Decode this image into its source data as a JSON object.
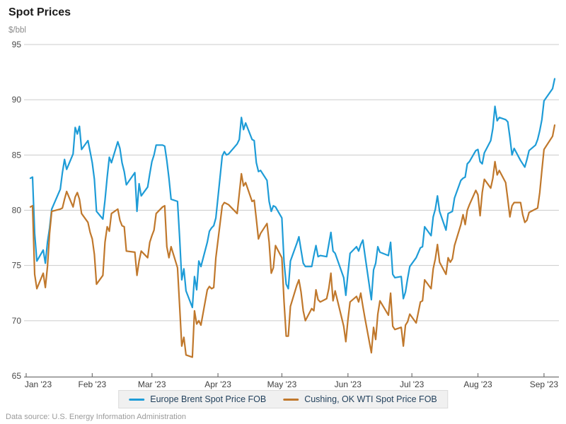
{
  "header": {
    "title": "Spot Prices",
    "unit_label": "$/bbl"
  },
  "source": {
    "text": "Data source: U.S. Energy Information Administration"
  },
  "legend": [
    {
      "label": "Europe Brent Spot Price FOB",
      "color": "#1e9cd7"
    },
    {
      "label": "Cushing, OK WTI Spot Price FOB",
      "color": "#c0782c"
    }
  ],
  "colors": {
    "brent_line": "#1e9cd7",
    "wti_line": "#c0782c",
    "gridline": "#cccccc",
    "axis_line": "#737373",
    "axis_label": "#4a4a4a",
    "month_label": "#404040",
    "legend_text": "#1f3e5a"
  },
  "chart_data": {
    "type": "line",
    "title": "Spot Prices",
    "ylabel": "$/bbl",
    "xlabel": "",
    "grid": "horizontal",
    "legend_position": "bottom",
    "ylim": [
      65,
      95
    ],
    "y_ticks": [
      65,
      70,
      75,
      80,
      85,
      90,
      95
    ],
    "xlim": [
      1,
      251
    ],
    "x_unit": "day_of_year_2023",
    "x_ticks": [
      {
        "label": "Jan '23",
        "doy": 1
      },
      {
        "label": "Feb '23",
        "doy": 32
      },
      {
        "label": "Mar '23",
        "doy": 60
      },
      {
        "label": "Apr '23",
        "doy": 91
      },
      {
        "label": "May '23",
        "doy": 121
      },
      {
        "label": "Jun '23",
        "doy": 152
      },
      {
        "label": "Jul '23",
        "doy": 182
      },
      {
        "label": "Aug '23",
        "doy": 213
      },
      {
        "label": "Sep '23",
        "doy": 244
      }
    ],
    "x": [
      3,
      4,
      5,
      6,
      9,
      10,
      11,
      12,
      13,
      17,
      18,
      19,
      20,
      23,
      24,
      25,
      26,
      27,
      30,
      31,
      32,
      33,
      34,
      37,
      38,
      39,
      40,
      41,
      44,
      45,
      46,
      47,
      48,
      52,
      53,
      54,
      55,
      58,
      59,
      60,
      61,
      62,
      65,
      66,
      67,
      68,
      69,
      72,
      73,
      74,
      75,
      76,
      79,
      80,
      81,
      82,
      83,
      86,
      87,
      88,
      89,
      90,
      93,
      94,
      95,
      96,
      100,
      101,
      102,
      103,
      104,
      107,
      108,
      109,
      110,
      111,
      114,
      115,
      116,
      117,
      118,
      121,
      122,
      123,
      124,
      125,
      128,
      129,
      130,
      131,
      132,
      135,
      136,
      137,
      138,
      139,
      142,
      143,
      144,
      145,
      146,
      150,
      151,
      152,
      153,
      156,
      157,
      158,
      159,
      160,
      163,
      164,
      165,
      166,
      167,
      171,
      172,
      173,
      174,
      177,
      178,
      179,
      180,
      181,
      184,
      186,
      187,
      188,
      191,
      192,
      193,
      194,
      195,
      198,
      199,
      200,
      201,
      202,
      205,
      206,
      207,
      208,
      209,
      212,
      213,
      214,
      215,
      216,
      219,
      220,
      221,
      222,
      223,
      226,
      227,
      228,
      229,
      230,
      233,
      234,
      235,
      236,
      237,
      240,
      241,
      242,
      243,
      244,
      248,
      249
    ],
    "series": [
      {
        "name": "Europe Brent Spot Price FOB",
        "color": "#1e9cd7",
        "values": [
          82.9,
          83.0,
          77.9,
          75.4,
          76.4,
          75.2,
          77.1,
          78.4,
          80.1,
          81.9,
          83.4,
          84.6,
          83.7,
          85.1,
          87.5,
          86.9,
          87.6,
          85.5,
          86.3,
          85.3,
          84.3,
          82.8,
          79.9,
          79.2,
          80.9,
          83.0,
          84.8,
          84.3,
          86.2,
          85.6,
          84.3,
          83.5,
          82.3,
          83.4,
          79.9,
          82.4,
          81.3,
          82.1,
          83.3,
          84.4,
          85.0,
          85.9,
          85.9,
          85.8,
          84.5,
          82.9,
          81.0,
          80.8,
          77.5,
          73.7,
          74.7,
          72.7,
          71.2,
          74.0,
          72.8,
          75.4,
          74.9,
          77.1,
          78.1,
          78.4,
          78.6,
          79.3,
          84.9,
          85.3,
          85.0,
          85.1,
          86.0,
          86.4,
          88.4,
          87.3,
          87.9,
          86.4,
          86.3,
          84.3,
          83.5,
          83.6,
          82.7,
          80.8,
          79.9,
          80.4,
          80.3,
          79.3,
          75.3,
          73.3,
          72.9,
          75.4,
          77.0,
          77.6,
          76.4,
          75.2,
          74.9,
          74.9,
          75.9,
          76.8,
          75.8,
          75.9,
          75.8,
          76.9,
          78.0,
          76.3,
          76.1,
          73.9,
          72.3,
          74.3,
          76.1,
          76.7,
          76.3,
          76.9,
          77.3,
          75.9,
          71.9,
          74.6,
          75.2,
          76.7,
          76.2,
          75.9,
          77.1,
          74.2,
          73.9,
          74.0,
          72.0,
          72.6,
          73.8,
          74.9,
          75.7,
          76.6,
          76.7,
          78.5,
          77.7,
          79.4,
          80.1,
          81.3,
          79.9,
          78.2,
          79.7,
          79.8,
          79.9,
          81.1,
          82.7,
          82.9,
          83.0,
          84.2,
          84.4,
          85.4,
          85.5,
          84.4,
          84.2,
          85.2,
          86.3,
          87.4,
          89.4,
          88.1,
          88.4,
          88.2,
          88.0,
          86.6,
          85.0,
          85.6,
          84.5,
          84.2,
          83.9,
          84.6,
          85.4,
          85.9,
          86.4,
          87.2,
          88.2,
          89.9,
          91.0,
          91.9
        ]
      },
      {
        "name": "Cushing, OK WTI Spot Price FOB",
        "color": "#c0782c",
        "values": [
          80.3,
          80.4,
          74.2,
          72.9,
          74.3,
          73.0,
          74.9,
          77.9,
          79.9,
          80.1,
          80.2,
          81.0,
          81.7,
          80.3,
          81.2,
          81.6,
          81.0,
          79.7,
          78.9,
          78.0,
          77.4,
          76.0,
          73.3,
          74.1,
          77.1,
          78.5,
          78.1,
          79.7,
          80.1,
          79.1,
          78.6,
          78.5,
          76.3,
          76.2,
          74.1,
          75.4,
          76.3,
          75.7,
          77.1,
          77.7,
          78.2,
          79.7,
          80.3,
          80.4,
          76.7,
          75.7,
          76.7,
          74.8,
          71.3,
          67.7,
          68.5,
          66.9,
          66.7,
          70.9,
          69.7,
          70.0,
          69.6,
          72.8,
          73.1,
          72.9,
          73.0,
          75.7,
          80.4,
          80.7,
          80.6,
          80.5,
          79.7,
          81.5,
          83.3,
          82.2,
          82.5,
          80.8,
          80.9,
          79.2,
          77.4,
          77.9,
          78.8,
          77.1,
          74.3,
          74.8,
          76.8,
          75.7,
          71.7,
          68.6,
          68.6,
          71.3,
          73.2,
          73.7,
          72.6,
          70.9,
          70.0,
          71.1,
          70.9,
          72.8,
          71.9,
          71.7,
          72.0,
          72.9,
          74.3,
          71.8,
          72.7,
          69.5,
          68.1,
          70.1,
          71.7,
          72.2,
          71.7,
          72.5,
          71.3,
          70.2,
          67.1,
          69.4,
          68.3,
          70.6,
          71.8,
          70.5,
          72.5,
          69.5,
          69.2,
          69.4,
          67.7,
          69.6,
          69.9,
          70.6,
          69.8,
          71.7,
          71.8,
          73.7,
          72.9,
          74.7,
          75.6,
          76.9,
          75.3,
          74.2,
          75.7,
          75.3,
          75.6,
          76.8,
          78.7,
          79.6,
          78.7,
          80.0,
          80.5,
          81.8,
          81.4,
          79.5,
          81.6,
          82.8,
          82.0,
          82.9,
          84.4,
          83.2,
          83.6,
          82.5,
          81.0,
          79.4,
          80.4,
          80.7,
          80.7,
          79.6,
          78.9,
          79.1,
          79.8,
          80.1,
          80.2,
          81.6,
          83.6,
          85.5,
          86.7,
          87.7
        ]
      }
    ]
  }
}
